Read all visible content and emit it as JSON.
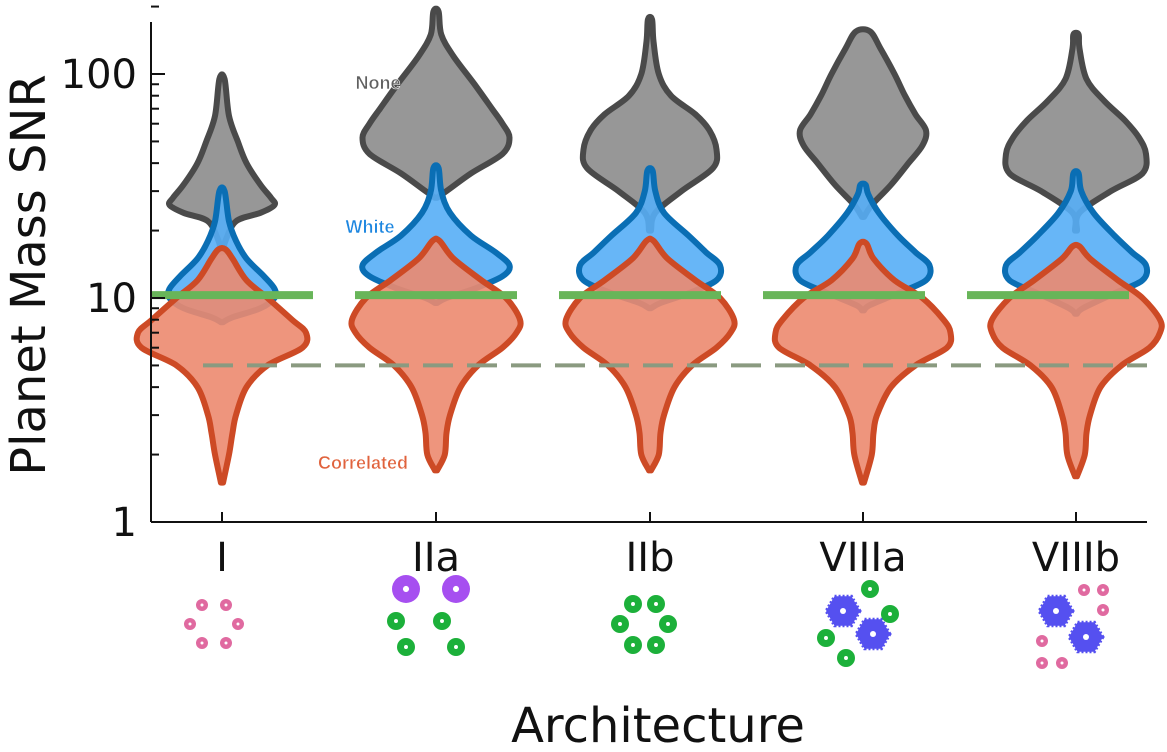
{
  "chart_data": {
    "type": "violin",
    "xlabel": "Architecture",
    "ylabel": "Planet Mass SNR",
    "yscale": "log",
    "ylim": [
      1,
      200
    ],
    "yticks": [
      1,
      10,
      100
    ],
    "yticklabels": [
      "1",
      "10",
      "100"
    ],
    "categories": [
      "I",
      "IIa",
      "IIb",
      "VIIIa",
      "VIIIb"
    ],
    "series": [
      {
        "name": "None",
        "color": "#8c8c8c",
        "stroke": "#4a4a4a",
        "profiles": [
          [
            [
              16,
              0.6
            ],
            [
              18,
              2
            ],
            [
              22,
              8
            ],
            [
              24,
              22
            ],
            [
              26,
              30
            ],
            [
              28,
              28
            ],
            [
              32,
              22
            ],
            [
              40,
              14
            ],
            [
              50,
              9
            ],
            [
              65,
              4
            ],
            [
              95,
              1.5
            ]
          ],
          [
            [
              28,
              0.6
            ],
            [
              30,
              6
            ],
            [
              36,
              20
            ],
            [
              44,
              38
            ],
            [
              52,
              42
            ],
            [
              60,
              38
            ],
            [
              70,
              32
            ],
            [
              90,
              22
            ],
            [
              120,
              10
            ],
            [
              150,
              3
            ],
            [
              190,
              1.5
            ]
          ],
          [
            [
              20,
              0.6
            ],
            [
              24,
              3
            ],
            [
              30,
              18
            ],
            [
              38,
              36
            ],
            [
              46,
              38
            ],
            [
              56,
              34
            ],
            [
              66,
              26
            ],
            [
              80,
              12
            ],
            [
              100,
              5
            ],
            [
              140,
              2
            ],
            [
              175,
              1.2
            ]
          ],
          [
            [
              23,
              0.6
            ],
            [
              26,
              5
            ],
            [
              32,
              16
            ],
            [
              40,
              26
            ],
            [
              48,
              34
            ],
            [
              56,
              36
            ],
            [
              66,
              30
            ],
            [
              80,
              24
            ],
            [
              100,
              18
            ],
            [
              130,
              10
            ],
            [
              155,
              4
            ]
          ],
          [
            [
              20,
              0.6
            ],
            [
              24,
              2
            ],
            [
              30,
              20
            ],
            [
              36,
              38
            ],
            [
              44,
              40
            ],
            [
              52,
              36
            ],
            [
              62,
              28
            ],
            [
              76,
              16
            ],
            [
              95,
              6
            ],
            [
              130,
              2
            ],
            [
              150,
              1.5
            ]
          ]
        ]
      },
      {
        "name": "White",
        "color": "#56aef6",
        "stroke": "#0a6eb4",
        "profiles": [
          [
            [
              7.8,
              0.6
            ],
            [
              8.2,
              6
            ],
            [
              9,
              22
            ],
            [
              10,
              30
            ],
            [
              11,
              30
            ],
            [
              12.5,
              24
            ],
            [
              15,
              14
            ],
            [
              18,
              8
            ],
            [
              22,
              4
            ],
            [
              30,
              1.5
            ]
          ],
          [
            [
              9.5,
              0.6
            ],
            [
              10,
              6
            ],
            [
              11,
              22
            ],
            [
              12.5,
              38
            ],
            [
              14,
              42
            ],
            [
              16,
              34
            ],
            [
              19,
              20
            ],
            [
              24,
              8
            ],
            [
              30,
              3
            ],
            [
              38,
              1.5
            ]
          ],
          [
            [
              9,
              0.6
            ],
            [
              9.5,
              6
            ],
            [
              10.5,
              22
            ],
            [
              12,
              38
            ],
            [
              14,
              40
            ],
            [
              16,
              32
            ],
            [
              19,
              22
            ],
            [
              24,
              8
            ],
            [
              30,
              3
            ],
            [
              37,
              1.5
            ]
          ],
          [
            [
              8.8,
              0.6
            ],
            [
              9.3,
              4
            ],
            [
              10.5,
              20
            ],
            [
              12,
              36
            ],
            [
              14,
              38
            ],
            [
              16,
              30
            ],
            [
              19,
              20
            ],
            [
              24,
              9
            ],
            [
              29,
              3
            ],
            [
              32,
              1.5
            ]
          ],
          [
            [
              8.5,
              0.6
            ],
            [
              9,
              4
            ],
            [
              10.5,
              22
            ],
            [
              12,
              38
            ],
            [
              14,
              40
            ],
            [
              16,
              32
            ],
            [
              19,
              22
            ],
            [
              24,
              10
            ],
            [
              30,
              3
            ],
            [
              36,
              1.5
            ]
          ]
        ]
      },
      {
        "name": "Correlated",
        "color": "#ec8a6f",
        "stroke": "#cd4a25",
        "profiles": [
          [
            [
              1.5,
              0.6
            ],
            [
              2,
              4
            ],
            [
              2.5,
              6
            ],
            [
              3,
              8
            ],
            [
              4,
              14
            ],
            [
              5,
              26
            ],
            [
              6,
              46
            ],
            [
              7,
              48
            ],
            [
              8,
              40
            ],
            [
              10,
              26
            ],
            [
              12,
              14
            ],
            [
              15,
              6
            ],
            [
              16.5,
              2
            ]
          ],
          [
            [
              1.7,
              0.6
            ],
            [
              2,
              5
            ],
            [
              2.5,
              6
            ],
            [
              3,
              8
            ],
            [
              4,
              14
            ],
            [
              5,
              24
            ],
            [
              6,
              38
            ],
            [
              7,
              46
            ],
            [
              8,
              48
            ],
            [
              10,
              40
            ],
            [
              12,
              26
            ],
            [
              15,
              10
            ],
            [
              18,
              2
            ]
          ],
          [
            [
              1.7,
              0.6
            ],
            [
              2,
              5
            ],
            [
              2.5,
              6
            ],
            [
              3,
              8
            ],
            [
              4,
              14
            ],
            [
              5,
              24
            ],
            [
              6,
              38
            ],
            [
              7,
              46
            ],
            [
              8,
              48
            ],
            [
              10,
              40
            ],
            [
              12,
              26
            ],
            [
              15,
              10
            ],
            [
              18,
              2
            ]
          ],
          [
            [
              1.5,
              0.6
            ],
            [
              2,
              5
            ],
            [
              2.5,
              6
            ],
            [
              3,
              8
            ],
            [
              4,
              16
            ],
            [
              5,
              30
            ],
            [
              6,
              48
            ],
            [
              7,
              50
            ],
            [
              8,
              46
            ],
            [
              10,
              34
            ],
            [
              12,
              18
            ],
            [
              15,
              6
            ],
            [
              17.5,
              2
            ]
          ],
          [
            [
              1.6,
              0.6
            ],
            [
              2,
              5
            ],
            [
              2.5,
              6
            ],
            [
              3,
              8
            ],
            [
              4,
              14
            ],
            [
              5,
              26
            ],
            [
              6,
              42
            ],
            [
              7,
              48
            ],
            [
              8,
              48
            ],
            [
              10,
              38
            ],
            [
              12,
              24
            ],
            [
              15,
              8
            ],
            [
              17,
              2
            ]
          ]
        ]
      }
    ],
    "hlines": [
      {
        "y": 10.3,
        "color": "#68b559",
        "style": "dashed-thick"
      },
      {
        "y": 5.0,
        "color": "#8a9a80",
        "style": "dashed-thin"
      }
    ],
    "annotations": [
      {
        "text": "None",
        "y": 92,
        "color": "#606060",
        "series": "None"
      },
      {
        "text": "White",
        "y": 21,
        "color": "#1c86e0",
        "series": "White"
      },
      {
        "text": "Correlated",
        "y": 1.85,
        "color": "#e0623c",
        "series": "Correlated"
      }
    ],
    "architecture_icons": [
      {
        "category": "I",
        "groups": [
          {
            "shape": "small-circle",
            "color": "#e06aa0",
            "count": 6
          }
        ]
      },
      {
        "category": "IIa",
        "groups": [
          {
            "shape": "large-circle",
            "color": "#a64ff0",
            "count": 2
          },
          {
            "shape": "medium-circle",
            "color": "#1cb03a",
            "count": 4
          }
        ]
      },
      {
        "category": "IIb",
        "groups": [
          {
            "shape": "medium-circle",
            "color": "#1cb03a",
            "count": 6
          }
        ]
      },
      {
        "category": "VIIIa",
        "groups": [
          {
            "shape": "hexagon",
            "color": "#5550f0",
            "count": 2
          },
          {
            "shape": "medium-circle",
            "color": "#1cb03a",
            "count": 4
          }
        ]
      },
      {
        "category": "VIIIb",
        "groups": [
          {
            "shape": "hexagon",
            "color": "#5550f0",
            "count": 2
          },
          {
            "shape": "small-circle",
            "color": "#e06aa0",
            "count": 6
          }
        ]
      }
    ]
  }
}
